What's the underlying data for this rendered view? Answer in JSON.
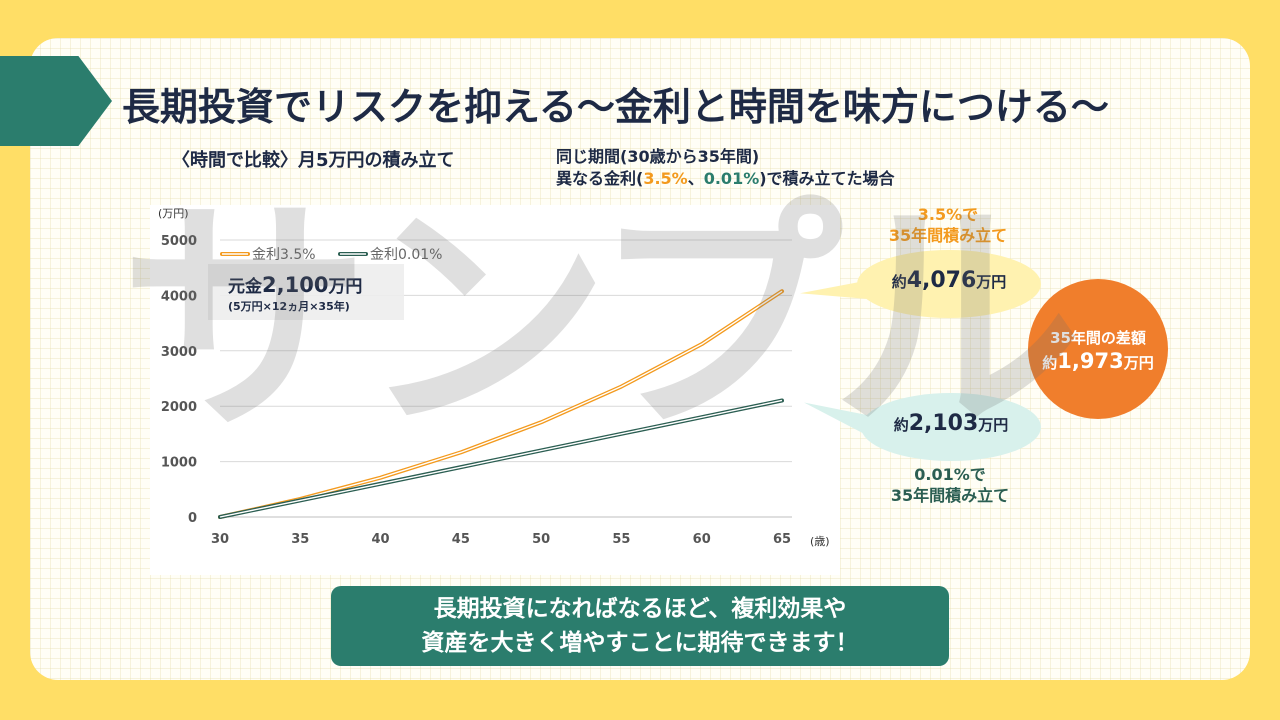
{
  "title": "長期投資でリスクを抑える〜金利と時間を味方につける〜",
  "subtitle": "〈時間で比較〉月5万円の積み立て",
  "condition": {
    "line1": "同じ期間(30歳から35年間)",
    "line2_pre": "異なる金利(",
    "rate_a": "3.5%",
    "sep": "、",
    "rate_b": "0.01%",
    "line2_post": ")で積み立てた場合"
  },
  "principal": {
    "prefix": "元金",
    "amount": "2,100",
    "unit": "万円",
    "detail": "(5万円×12ヵ月×35年)"
  },
  "callouts": {
    "orange_label_1": "3.5%で",
    "orange_label_2": "35年間積み立て",
    "orange_prefix": "約",
    "orange_value": "4,076",
    "orange_unit": "万円",
    "green_prefix": "約",
    "green_value": "2,103",
    "green_unit": "万円",
    "green_label_1": "0.01%で",
    "green_label_2": "35年間積み立て",
    "diff_label": "35年間の差額",
    "diff_prefix": "約",
    "diff_value": "1,973",
    "diff_unit": "万円"
  },
  "watermark": "サンプル",
  "cta": {
    "line1": "長期投資になればなるほど、複利効果や",
    "line2": "資産を大きく増やすことに期待できます！"
  },
  "chart_data": {
    "type": "line",
    "x": [
      30,
      35,
      40,
      45,
      50,
      55,
      60,
      65
    ],
    "x_ticks": [
      "30",
      "35",
      "40",
      "45",
      "50",
      "55",
      "60",
      "65"
    ],
    "y_ticks": [
      "0",
      "1000",
      "2000",
      "3000",
      "4000",
      "5000"
    ],
    "xlabel": "(歳)",
    "ylabel": "(万円)",
    "xlim": [
      30,
      65
    ],
    "ylim": [
      0,
      5000
    ],
    "grid": true,
    "legend": "top-left",
    "series": [
      {
        "name": "金利3.5%",
        "color": "#F39A1E",
        "values": [
          0,
          325,
          710,
          1167,
          1710,
          2355,
          3120,
          4076
        ]
      },
      {
        "name": "金利0.01%",
        "color": "#2B5E52",
        "values": [
          0,
          300,
          600,
          900,
          1201,
          1501,
          1802,
          2103
        ]
      }
    ]
  }
}
